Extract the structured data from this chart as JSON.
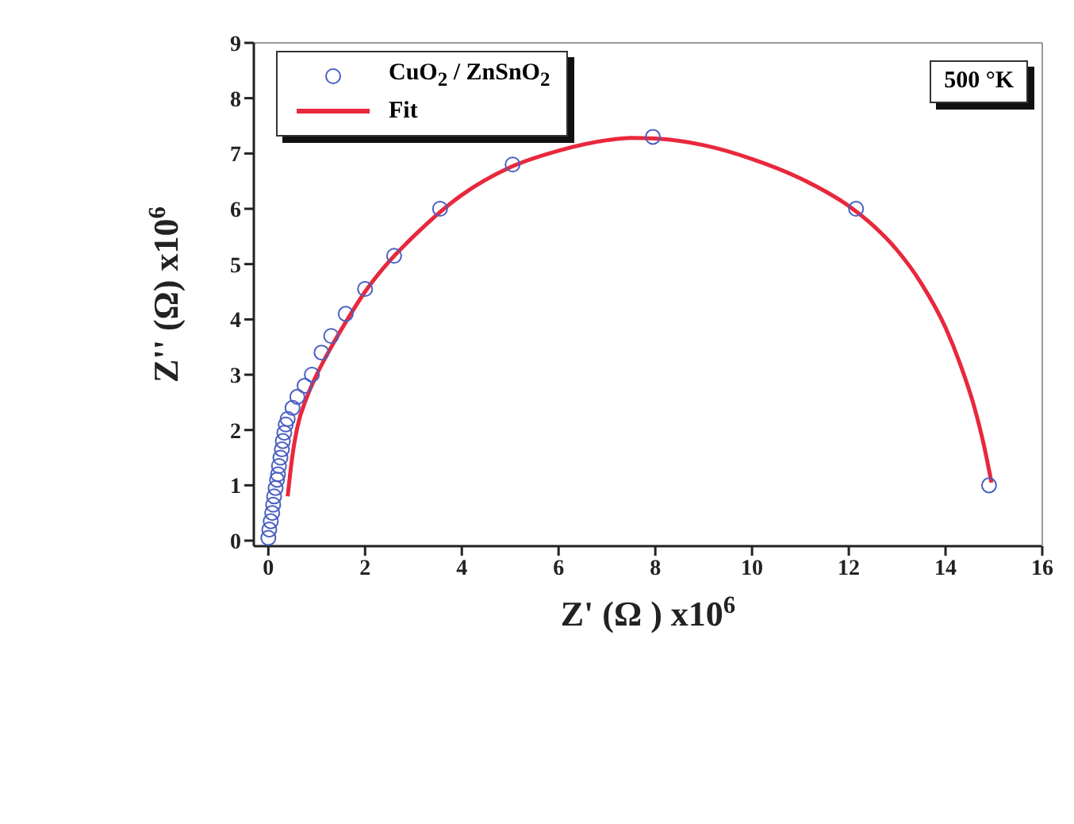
{
  "chart_data": {
    "type": "scatter",
    "xlabel": "Z' (Ω ) x10$^{6}$",
    "ylabel": "Z'' (Ω) x10$^{6}$",
    "xlim": [
      -0.3,
      16
    ],
    "ylim": [
      -0.1,
      9
    ],
    "xticks": [
      0,
      2,
      4,
      6,
      8,
      10,
      12,
      14,
      16
    ],
    "yticks": [
      0,
      1,
      2,
      3,
      4,
      5,
      6,
      7,
      8,
      9
    ],
    "legend": "top left",
    "annotations": [
      "500 °K"
    ],
    "series": [
      {
        "name": "CuO$_{2}$ / ZnSnO$_{2}$",
        "marker": "circle",
        "color": "#4a5fc1",
        "x": [
          0.0,
          0.02,
          0.05,
          0.08,
          0.1,
          0.12,
          0.15,
          0.18,
          0.2,
          0.22,
          0.25,
          0.28,
          0.3,
          0.33,
          0.36,
          0.4,
          0.5,
          0.6,
          0.75,
          0.9,
          1.1,
          1.3,
          1.6,
          2.0,
          2.6,
          3.55,
          5.05,
          7.95,
          12.15,
          14.9
        ],
        "values": [
          0.05,
          0.2,
          0.35,
          0.5,
          0.65,
          0.8,
          0.95,
          1.1,
          1.2,
          1.35,
          1.5,
          1.65,
          1.8,
          1.95,
          2.1,
          2.2,
          2.4,
          2.6,
          2.8,
          3.0,
          3.4,
          3.7,
          4.1,
          4.55,
          5.15,
          6.0,
          6.8,
          7.3,
          6.0,
          1.0
        ]
      },
      {
        "name": "Fit",
        "type": "line",
        "marker": "none",
        "line_style": "solid",
        "color": "#e8283c",
        "x": [
          0.4,
          0.45,
          0.5,
          0.6,
          0.8,
          1.0,
          1.3,
          1.6,
          2.0,
          2.5,
          3.0,
          4.0,
          5.0,
          6.0,
          7.0,
          7.5,
          8.0,
          9.0,
          10.0,
          11.0,
          12.0,
          12.5,
          13.0,
          13.5,
          14.0,
          14.3,
          14.6,
          14.8,
          14.95
        ],
        "values": [
          0.8,
          1.2,
          1.55,
          2.05,
          2.6,
          3.0,
          3.5,
          3.95,
          4.5,
          5.05,
          5.5,
          6.25,
          6.75,
          7.05,
          7.24,
          7.28,
          7.27,
          7.15,
          6.9,
          6.55,
          6.05,
          5.7,
          5.25,
          4.65,
          3.85,
          3.2,
          2.4,
          1.7,
          1.05
        ]
      }
    ]
  }
}
